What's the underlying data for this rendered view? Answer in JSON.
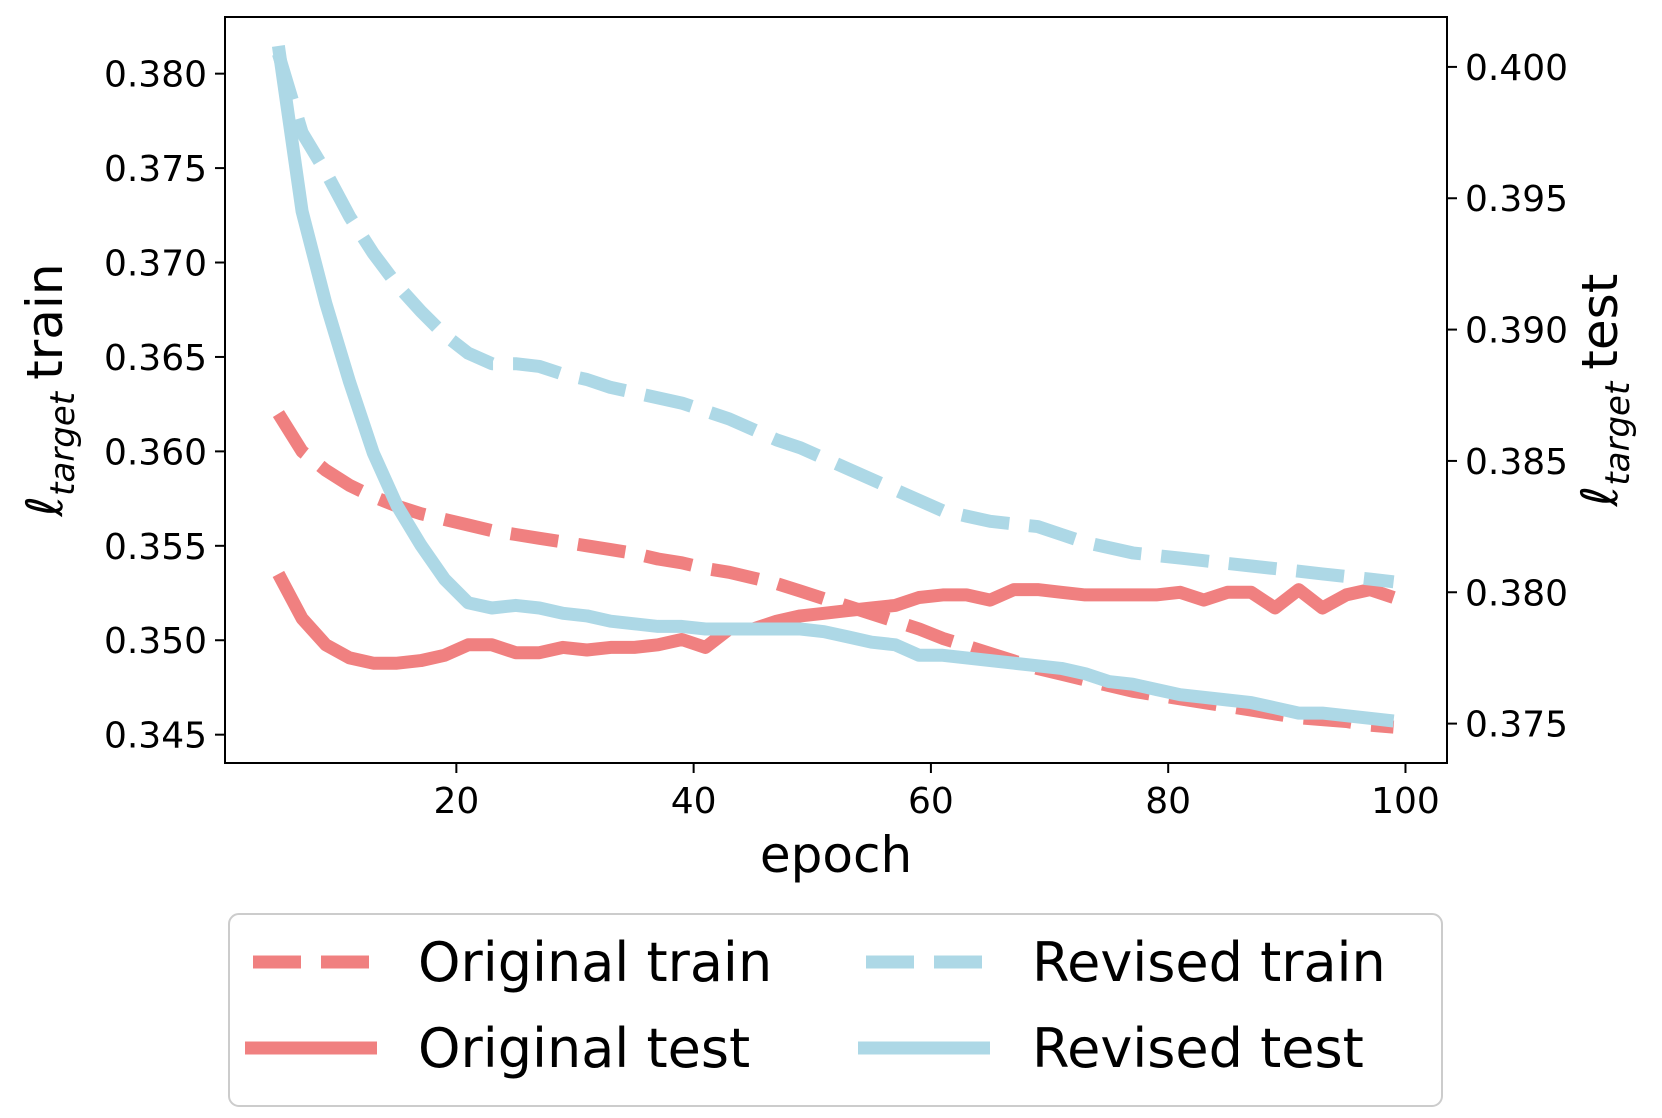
{
  "chart_data": {
    "type": "line",
    "xlabel": "epoch",
    "ylabel_left": {
      "symbol": "ℓ",
      "subscript": "target",
      "word": "train"
    },
    "ylabel_right": {
      "symbol": "ℓ",
      "subscript": "target",
      "word": "test"
    },
    "xlim": [
      0.5,
      103.5
    ],
    "ylim_left": [
      0.3435,
      0.383
    ],
    "ylim_right": [
      0.3735,
      0.4019
    ],
    "x_ticks": [
      20,
      40,
      60,
      80,
      100
    ],
    "x_tick_labels": [
      "20",
      "40",
      "60",
      "80",
      "100"
    ],
    "y_left_ticks": [
      0.345,
      0.35,
      0.355,
      0.36,
      0.365,
      0.37,
      0.375,
      0.38
    ],
    "y_left_tick_labels": [
      "0.345",
      "0.350",
      "0.355",
      "0.360",
      "0.365",
      "0.370",
      "0.375",
      "0.380"
    ],
    "y_right_ticks": [
      0.375,
      0.38,
      0.385,
      0.39,
      0.395,
      0.4
    ],
    "y_right_tick_labels": [
      "0.375",
      "0.380",
      "0.385",
      "0.390",
      "0.395",
      "0.400"
    ],
    "x": [
      5,
      7,
      9,
      11,
      13,
      15,
      17,
      19,
      21,
      23,
      25,
      27,
      29,
      31,
      33,
      35,
      37,
      39,
      41,
      43,
      45,
      47,
      49,
      51,
      53,
      55,
      57,
      59,
      61,
      63,
      65,
      67,
      69,
      71,
      73,
      75,
      77,
      79,
      81,
      83,
      85,
      87,
      89,
      91,
      93,
      95,
      97,
      99
    ],
    "series": [
      {
        "name": "Original train",
        "axis": "left",
        "style": "dashed",
        "color": "#F08080",
        "values": [
          0.362,
          0.36,
          0.359,
          0.3582,
          0.3576,
          0.3571,
          0.3567,
          0.3564,
          0.3561,
          0.3558,
          0.3556,
          0.3554,
          0.3552,
          0.355,
          0.3548,
          0.3546,
          0.3543,
          0.3541,
          0.3538,
          0.3536,
          0.3533,
          0.353,
          0.3526,
          0.3522,
          0.3518,
          0.3514,
          0.351,
          0.3506,
          0.3501,
          0.3497,
          0.3493,
          0.3489,
          0.3485,
          0.3482,
          0.3479,
          0.3476,
          0.3473,
          0.3471,
          0.3469,
          0.3467,
          0.3465,
          0.3463,
          0.3461,
          0.3459,
          0.3458,
          0.3457,
          0.3455,
          0.3454
        ]
      },
      {
        "name": "Original test",
        "axis": "right",
        "style": "solid",
        "color": "#F08080",
        "values": [
          0.3807,
          0.379,
          0.378,
          0.3775,
          0.3773,
          0.3773,
          0.3774,
          0.3776,
          0.378,
          0.378,
          0.3777,
          0.3777,
          0.3779,
          0.3778,
          0.3779,
          0.3779,
          0.378,
          0.3782,
          0.3779,
          0.3786,
          0.3786,
          0.3789,
          0.3791,
          0.3792,
          0.3793,
          0.3794,
          0.3795,
          0.3798,
          0.3799,
          0.3799,
          0.3797,
          0.3801,
          0.3801,
          0.38,
          0.3799,
          0.3799,
          0.3799,
          0.3799,
          0.38,
          0.3797,
          0.38,
          0.38,
          0.3794,
          0.3801,
          0.3794,
          0.3799,
          0.3801,
          0.3798
        ]
      },
      {
        "name": "Revised train",
        "axis": "right",
        "style": "dashed",
        "color": "#ADD8E6",
        "values": [
          0.4005,
          0.3975,
          0.396,
          0.3943,
          0.3929,
          0.3917,
          0.3907,
          0.3898,
          0.3891,
          0.3887,
          0.3887,
          0.3886,
          0.3883,
          0.3881,
          0.3878,
          0.3876,
          0.3874,
          0.3872,
          0.3869,
          0.3866,
          0.3862,
          0.3858,
          0.3855,
          0.3851,
          0.3847,
          0.3843,
          0.3839,
          0.3835,
          0.3831,
          0.3829,
          0.3827,
          0.3826,
          0.3825,
          0.3822,
          0.3819,
          0.3817,
          0.3815,
          0.3814,
          0.3813,
          0.3812,
          0.3811,
          0.381,
          0.3809,
          0.3808,
          0.3807,
          0.3806,
          0.3805,
          0.3804
        ]
      },
      {
        "name": "Revised test",
        "axis": "right",
        "style": "solid",
        "color": "#ADD8E6",
        "values": [
          0.4008,
          0.3945,
          0.391,
          0.388,
          0.3853,
          0.3833,
          0.3818,
          0.3805,
          0.3796,
          0.3794,
          0.3795,
          0.3794,
          0.3792,
          0.3791,
          0.3789,
          0.3788,
          0.3787,
          0.3787,
          0.3786,
          0.3786,
          0.3786,
          0.3786,
          0.3786,
          0.3785,
          0.3783,
          0.3781,
          0.378,
          0.3776,
          0.3776,
          0.3775,
          0.3774,
          0.3773,
          0.3772,
          0.3771,
          0.3769,
          0.3766,
          0.3765,
          0.3763,
          0.3761,
          0.376,
          0.3759,
          0.3758,
          0.3756,
          0.3754,
          0.3754,
          0.3753,
          0.3752,
          0.3751
        ]
      }
    ],
    "legend": {
      "placement": "below",
      "entries": [
        "Original train",
        "Revised train",
        "Original test",
        "Revised test"
      ]
    }
  }
}
